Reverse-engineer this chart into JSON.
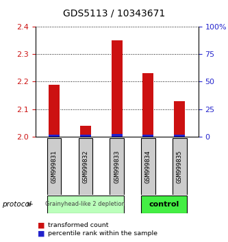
{
  "title": "GDS5113 / 10343671",
  "samples": [
    "GSM999831",
    "GSM999832",
    "GSM999833",
    "GSM999834",
    "GSM999835"
  ],
  "red_values": [
    2.19,
    2.04,
    2.35,
    2.23,
    2.13
  ],
  "blue_values": [
    2.008,
    2.007,
    2.009,
    2.008,
    2.008
  ],
  "ylim_left": [
    2.0,
    2.4
  ],
  "ylim_right": [
    0,
    100
  ],
  "left_ticks": [
    2.0,
    2.1,
    2.2,
    2.3,
    2.4
  ],
  "right_ticks": [
    0,
    25,
    50,
    75,
    100
  ],
  "right_tick_labels": [
    "0",
    "25",
    "50",
    "75",
    "100%"
  ],
  "group1_label": "Grainyhead-like 2 depletion",
  "group2_label": "control",
  "group1_color": "#bbffbb",
  "group2_color": "#44ee44",
  "protocol_label": "protocol",
  "legend1_label": "transformed count",
  "legend2_label": "percentile rank within the sample",
  "bar_color_red": "#cc1111",
  "bar_color_blue": "#2222cc",
  "bar_width": 0.35,
  "base_value": 2.0,
  "label_box_color": "#cccccc",
  "tick_color_left": "#cc1111",
  "tick_color_right": "#2222cc",
  "title_fontsize": 10,
  "tick_fontsize": 8,
  "grid_color": "#000000"
}
